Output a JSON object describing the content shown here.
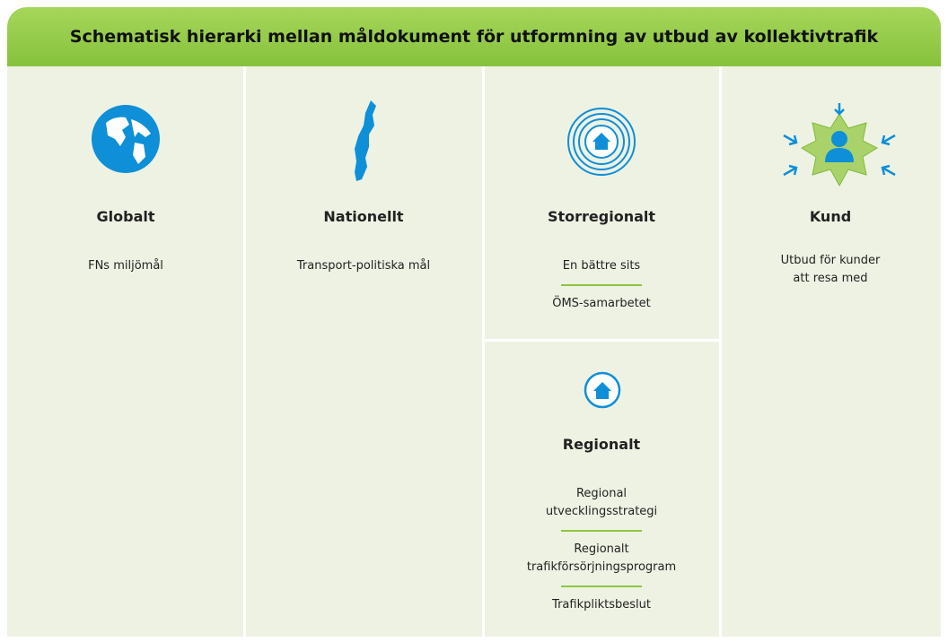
{
  "title": "Schematisk hierarki mellan måldokument för utformning av utbud av kollektivtrafik",
  "sections": [
    {
      "heading": "Globalt",
      "items": [
        [
          "FNs miljömål"
        ]
      ]
    },
    {
      "heading": "Nationellt",
      "items": [
        [
          "Transport-politiska mål"
        ]
      ]
    },
    {
      "heading": "Storregionalt",
      "items": [
        [
          "En bättre sits"
        ],
        [
          "ÖMS-samarbetet"
        ]
      ]
    },
    {
      "heading": "Regionalt",
      "items": [
        [
          "Regional",
          "utvecklingsstrategi"
        ],
        [
          "Regionalt",
          "trafikförsörjningsprogram"
        ],
        [
          "Trafikpliktsbeslut"
        ]
      ]
    },
    {
      "heading": "Kund",
      "items": [
        [
          "Utbud för kunder",
          "att resa med"
        ]
      ]
    }
  ]
}
